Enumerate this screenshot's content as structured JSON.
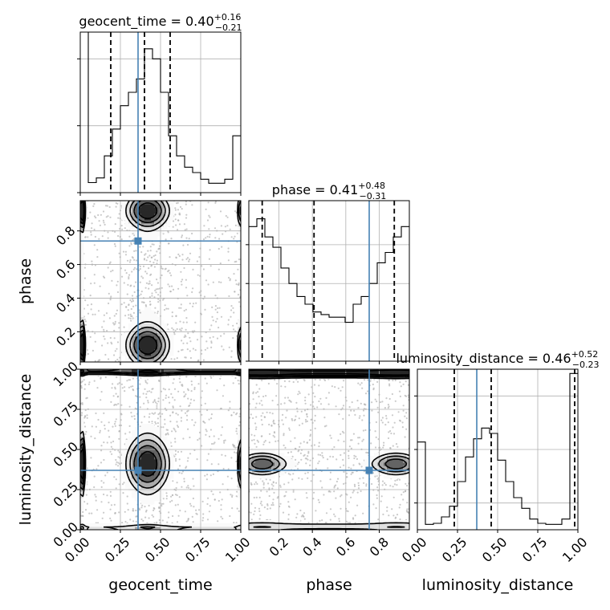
{
  "chart_data": {
    "type": "corner",
    "parameters": [
      "geocent_time",
      "phase",
      "luminosity_distance"
    ],
    "ranges": {
      "geocent_time": [
        0.0,
        1.0
      ],
      "phase": [
        0.02,
        0.98
      ],
      "luminosity_distance": [
        0.0,
        1.0
      ]
    },
    "truths": {
      "geocent_time": 0.36,
      "phase": 0.74,
      "luminosity_distance": 0.37
    },
    "colors": {
      "truth": "#4682b4",
      "hist": "#000000",
      "grid": "#b0b0b0",
      "scatter": "#b4b4b4"
    },
    "grid": true,
    "marginals": [
      {
        "param": "geocent_time",
        "title": {
          "prefix": "geocent_time = 0.40",
          "plus": "+0.16",
          "minus": "−0.21"
        },
        "quantiles": [
          0.19,
          0.4,
          0.56
        ],
        "bin_edges": [
          0.0,
          0.05,
          0.1,
          0.15,
          0.2,
          0.25,
          0.3,
          0.35,
          0.4,
          0.45,
          0.5,
          0.55,
          0.6,
          0.65,
          0.7,
          0.75,
          0.8,
          0.85,
          0.9,
          0.95,
          1.0
        ],
        "counts": [
          240,
          15,
          22,
          55,
          95,
          130,
          150,
          170,
          215,
          200,
          150,
          85,
          55,
          38,
          30,
          20,
          14,
          14,
          20,
          85
        ],
        "y_ticks": [
          0,
          100,
          200
        ],
        "ylim": [
          0,
          240
        ]
      },
      {
        "param": "phase",
        "title": {
          "prefix": "phase = 0.41",
          "plus": "+0.48",
          "minus": "−0.31"
        },
        "quantiles": [
          0.1,
          0.41,
          0.89
        ],
        "bin_edges": [
          0.02,
          0.068,
          0.116,
          0.164,
          0.212,
          0.26,
          0.308,
          0.356,
          0.404,
          0.452,
          0.5,
          0.548,
          0.596,
          0.644,
          0.692,
          0.74,
          0.788,
          0.836,
          0.884,
          0.932,
          0.98
        ],
        "counts": [
          82,
          85,
          78,
          74,
          66,
          60,
          55,
          52,
          49,
          48,
          47,
          47,
          45,
          52,
          55,
          60,
          68,
          72,
          78,
          82
        ],
        "y_ticks": [
          30,
          45,
          60,
          75
        ],
        "ylim": [
          30,
          92
        ]
      },
      {
        "param": "luminosity_distance",
        "title": {
          "prefix": "luminosity_distance = 0.46",
          "plus": "+0.52",
          "minus": "−0.23"
        },
        "quantiles": [
          0.23,
          0.46,
          0.98
        ],
        "bin_edges": [
          0.0,
          0.05,
          0.1,
          0.15,
          0.2,
          0.25,
          0.3,
          0.35,
          0.4,
          0.45,
          0.5,
          0.55,
          0.6,
          0.65,
          0.7,
          0.75,
          0.8,
          0.85,
          0.9,
          0.95,
          1.0
        ],
        "counts": [
          82,
          5,
          6,
          12,
          22,
          45,
          68,
          85,
          95,
          90,
          65,
          45,
          30,
          20,
          10,
          6,
          5,
          5,
          10,
          146
        ],
        "y_ticks": [
          25,
          75,
          125
        ],
        "ylim": [
          0,
          150
        ]
      }
    ],
    "joint_panels": [
      {
        "x": "geocent_time",
        "y": "phase"
      },
      {
        "x": "geocent_time",
        "y": "luminosity_distance"
      },
      {
        "x": "phase",
        "y": "luminosity_distance"
      }
    ],
    "x_tick_labels": {
      "geocent_time": [
        "0.00",
        "0.25",
        "0.50",
        "0.75",
        "1.00"
      ],
      "phase": [
        "0.2",
        "0.4",
        "0.6",
        "0.8"
      ],
      "luminosity_distance": [
        "0.00",
        "0.25",
        "0.50",
        "0.75",
        "1.00"
      ]
    },
    "y_tick_labels": {
      "phase": [
        "0.2",
        "0.4",
        "0.6",
        "0.8"
      ],
      "luminosity_distance": [
        "0.00",
        "0.25",
        "0.50",
        "0.75",
        "1.00"
      ]
    },
    "x_tick_values": {
      "geocent_time": [
        0.0,
        0.25,
        0.5,
        0.75,
        1.0
      ],
      "phase": [
        0.2,
        0.4,
        0.6,
        0.8
      ],
      "luminosity_distance": [
        0.0,
        0.25,
        0.5,
        0.75,
        1.0
      ]
    },
    "y_tick_values": {
      "phase": [
        0.2,
        0.4,
        0.6,
        0.8
      ],
      "luminosity_distance": [
        0.0,
        0.25,
        0.5,
        0.75,
        1.0
      ]
    },
    "axis_labels": {
      "x": [
        "geocent_time",
        "phase",
        "luminosity_distance"
      ],
      "y": [
        "phase",
        "luminosity_distance"
      ]
    }
  }
}
